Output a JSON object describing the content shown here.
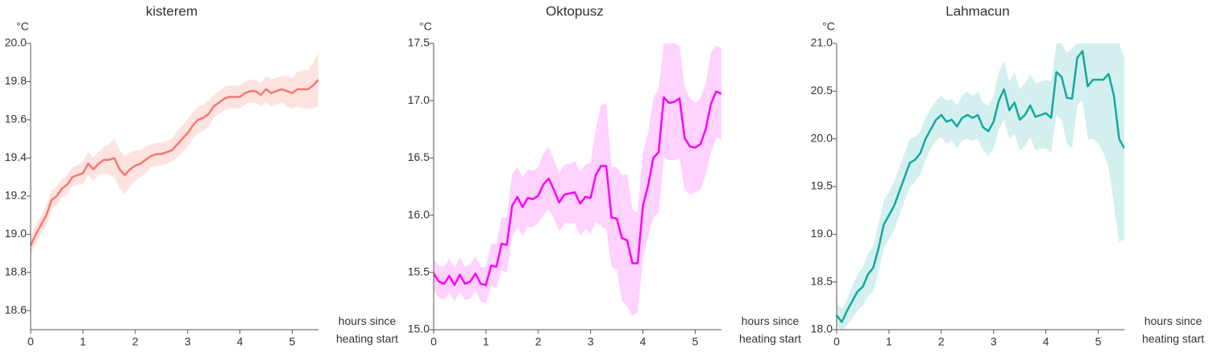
{
  "chart_data": [
    {
      "type": "line",
      "title": "kisterem",
      "ylabel": "°C",
      "xlabel": "hours since heating start",
      "color": "#f8766d",
      "band_color": "#fde3e0",
      "xlim": [
        0,
        5.5
      ],
      "xticks": [
        0,
        1,
        2,
        3,
        4,
        5
      ],
      "ylim": [
        18.5,
        20.0
      ],
      "yticks": [
        18.6,
        18.8,
        {
          "value": 19,
          "label": "19.0"
        },
        19.2,
        19.4,
        19.6,
        19.8,
        {
          "value": 20,
          "label": "20.0"
        }
      ],
      "x": [
        0,
        0.1,
        0.2,
        0.3,
        0.4,
        0.5,
        0.6,
        0.7,
        0.8,
        0.9,
        1,
        1.1,
        1.2,
        1.3,
        1.4,
        1.5,
        1.6,
        1.7,
        1.8,
        1.9,
        2,
        2.1,
        2.2,
        2.3,
        2.4,
        2.5,
        2.6,
        2.7,
        2.8,
        2.9,
        3,
        3.1,
        3.2,
        3.3,
        3.4,
        3.5,
        3.6,
        3.7,
        3.8,
        3.9,
        4,
        4.1,
        4.2,
        4.3,
        4.4,
        4.5,
        4.6,
        4.7,
        4.8,
        4.9,
        5,
        5.1,
        5.2,
        5.3,
        5.4,
        5.5
      ],
      "values": [
        18.94,
        19.0,
        19.05,
        19.1,
        19.18,
        19.2,
        19.24,
        19.26,
        19.3,
        19.31,
        19.32,
        19.37,
        19.34,
        19.37,
        19.39,
        19.39,
        19.4,
        19.34,
        19.31,
        19.34,
        19.36,
        19.37,
        19.39,
        19.41,
        19.42,
        19.42,
        19.43,
        19.44,
        19.47,
        19.5,
        19.53,
        19.57,
        19.6,
        19.61,
        19.63,
        19.67,
        19.69,
        19.71,
        19.72,
        19.72,
        19.72,
        19.74,
        19.75,
        19.75,
        19.73,
        19.76,
        19.74,
        19.75,
        19.76,
        19.75,
        19.74,
        19.76,
        19.76,
        19.76,
        19.78,
        19.81
      ],
      "lower": [
        18.89,
        18.95,
        19.0,
        19.05,
        19.13,
        19.15,
        19.19,
        19.21,
        19.25,
        19.26,
        19.26,
        19.31,
        19.28,
        19.31,
        19.32,
        19.31,
        19.3,
        19.24,
        19.21,
        19.25,
        19.28,
        19.3,
        19.32,
        19.35,
        19.36,
        19.36,
        19.37,
        19.38,
        19.4,
        19.43,
        19.46,
        19.5,
        19.53,
        19.54,
        19.56,
        19.61,
        19.63,
        19.65,
        19.66,
        19.66,
        19.66,
        19.68,
        19.69,
        19.69,
        19.67,
        19.69,
        19.67,
        19.68,
        19.69,
        19.67,
        19.66,
        19.67,
        19.66,
        19.66,
        19.66,
        19.67
      ],
      "upper": [
        18.99,
        19.05,
        19.1,
        19.15,
        19.23,
        19.25,
        19.29,
        19.31,
        19.35,
        19.36,
        19.38,
        19.43,
        19.4,
        19.43,
        19.46,
        19.47,
        19.5,
        19.44,
        19.41,
        19.43,
        19.44,
        19.44,
        19.46,
        19.47,
        19.48,
        19.48,
        19.49,
        19.5,
        19.54,
        19.57,
        19.6,
        19.64,
        19.67,
        19.68,
        19.7,
        19.73,
        19.75,
        19.77,
        19.78,
        19.78,
        19.78,
        19.8,
        19.81,
        19.81,
        19.79,
        19.83,
        19.81,
        19.82,
        19.83,
        19.83,
        19.82,
        19.85,
        19.86,
        19.86,
        19.9,
        19.95
      ]
    },
    {
      "type": "line",
      "title": "Oktopusz",
      "ylabel": "°C",
      "xlabel": "hours since heating start",
      "color": "#ff00ff",
      "band_color": "#ffd2ff",
      "xlim": [
        0,
        5.5
      ],
      "xticks": [
        0,
        1,
        2,
        3,
        4,
        5
      ],
      "ylim": [
        15.0,
        17.5
      ],
      "yticks": [
        {
          "value": 15,
          "label": "15.0"
        },
        15.5,
        {
          "value": 16,
          "label": "16.0"
        },
        16.5,
        {
          "value": 17,
          "label": "17.0"
        },
        17.5
      ],
      "x": [
        0,
        0.1,
        0.2,
        0.3,
        0.4,
        0.5,
        0.6,
        0.7,
        0.8,
        0.9,
        1,
        1.1,
        1.2,
        1.3,
        1.4,
        1.5,
        1.6,
        1.7,
        1.8,
        1.9,
        2,
        2.1,
        2.2,
        2.3,
        2.4,
        2.5,
        2.6,
        2.7,
        2.8,
        2.9,
        3,
        3.1,
        3.2,
        3.3,
        3.4,
        3.5,
        3.6,
        3.7,
        3.8,
        3.9,
        4,
        4.1,
        4.2,
        4.3,
        4.4,
        4.5,
        4.6,
        4.7,
        4.8,
        4.9,
        5,
        5.1,
        5.2,
        5.3,
        5.4,
        5.5
      ],
      "values": [
        15.49,
        15.42,
        15.4,
        15.47,
        15.39,
        15.48,
        15.4,
        15.42,
        15.49,
        15.4,
        15.39,
        15.56,
        15.55,
        15.75,
        15.74,
        16.08,
        16.16,
        16.07,
        16.15,
        16.14,
        16.17,
        16.27,
        16.32,
        16.22,
        16.11,
        16.18,
        16.19,
        16.2,
        16.1,
        16.16,
        16.15,
        16.35,
        16.43,
        16.43,
        15.98,
        15.97,
        15.8,
        15.78,
        15.58,
        15.58,
        16.08,
        16.26,
        16.5,
        16.55,
        17.03,
        16.98,
        16.99,
        17.02,
        16.67,
        16.6,
        16.59,
        16.62,
        16.75,
        16.97,
        17.08,
        17.06
      ],
      "lower": [
        15.35,
        15.28,
        15.26,
        15.32,
        15.25,
        15.33,
        15.26,
        15.27,
        15.34,
        15.25,
        15.23,
        15.38,
        15.36,
        15.52,
        15.5,
        15.8,
        15.9,
        15.82,
        15.9,
        15.9,
        15.93,
        16.0,
        16.05,
        15.97,
        15.86,
        15.93,
        15.93,
        15.93,
        15.82,
        15.88,
        15.84,
        15.95,
        15.9,
        15.88,
        15.55,
        15.52,
        15.25,
        15.2,
        15.12,
        15.15,
        15.62,
        15.82,
        15.98,
        16.02,
        16.5,
        16.48,
        16.48,
        16.5,
        16.22,
        16.18,
        16.2,
        16.22,
        16.35,
        16.55,
        16.68,
        16.66
      ],
      "upper": [
        15.62,
        15.56,
        15.55,
        15.62,
        15.54,
        15.63,
        15.55,
        15.57,
        15.64,
        15.55,
        15.55,
        15.75,
        15.75,
        15.98,
        15.98,
        16.36,
        16.42,
        16.33,
        16.4,
        16.39,
        16.42,
        16.54,
        16.6,
        16.48,
        16.37,
        16.44,
        16.45,
        16.47,
        16.38,
        16.44,
        16.46,
        16.75,
        16.96,
        16.98,
        16.42,
        16.42,
        16.35,
        16.36,
        16.05,
        16.02,
        16.55,
        16.72,
        17.02,
        17.1,
        17.5,
        17.5,
        17.5,
        17.48,
        17.12,
        17.02,
        16.98,
        17.02,
        17.15,
        17.42,
        17.48,
        17.46
      ]
    },
    {
      "type": "line",
      "title": "Lahmacun",
      "ylabel": "°C",
      "xlabel": "hours since heating start",
      "color": "#13a89e",
      "band_color": "#d3f0ee",
      "xlim": [
        0,
        5.5
      ],
      "xticks": [
        0,
        1,
        2,
        3,
        4,
        5
      ],
      "ylim": [
        18.0,
        21.0
      ],
      "yticks": [
        {
          "value": 18,
          "label": "18.0"
        },
        18.5,
        {
          "value": 19,
          "label": "19.0"
        },
        19.5,
        {
          "value": 20,
          "label": "20.0"
        },
        20.5,
        {
          "value": 21,
          "label": "21.0"
        }
      ],
      "x": [
        0,
        0.1,
        0.2,
        0.3,
        0.4,
        0.5,
        0.6,
        0.7,
        0.8,
        0.9,
        1,
        1.1,
        1.2,
        1.3,
        1.4,
        1.5,
        1.6,
        1.7,
        1.8,
        1.9,
        2,
        2.1,
        2.2,
        2.3,
        2.4,
        2.5,
        2.6,
        2.7,
        2.8,
        2.9,
        3,
        3.1,
        3.2,
        3.3,
        3.4,
        3.5,
        3.6,
        3.7,
        3.8,
        3.9,
        4,
        4.1,
        4.2,
        4.3,
        4.4,
        4.5,
        4.6,
        4.7,
        4.8,
        4.9,
        5,
        5.1,
        5.2,
        5.3,
        5.4,
        5.5
      ],
      "values": [
        18.15,
        18.08,
        18.2,
        18.3,
        18.4,
        18.45,
        18.58,
        18.65,
        18.85,
        19.1,
        19.2,
        19.3,
        19.45,
        19.6,
        19.75,
        19.78,
        19.85,
        20.0,
        20.1,
        20.2,
        20.25,
        20.18,
        20.2,
        20.13,
        20.22,
        20.25,
        20.22,
        20.25,
        20.12,
        20.08,
        20.18,
        20.4,
        20.52,
        20.3,
        20.38,
        20.2,
        20.25,
        20.35,
        20.23,
        20.25,
        20.27,
        20.22,
        20.7,
        20.65,
        20.43,
        20.42,
        20.85,
        20.92,
        20.55,
        20.62,
        20.62,
        20.62,
        20.68,
        20.45,
        20.0,
        19.9
      ],
      "lower": [
        18.05,
        17.98,
        18.05,
        18.12,
        18.2,
        18.25,
        18.35,
        18.4,
        18.6,
        18.85,
        18.95,
        19.05,
        19.2,
        19.35,
        19.5,
        19.55,
        19.62,
        19.78,
        19.9,
        19.98,
        20.02,
        19.95,
        19.98,
        19.9,
        19.98,
        20.0,
        19.98,
        20.0,
        19.88,
        19.82,
        19.9,
        20.1,
        20.2,
        20.0,
        20.05,
        19.88,
        19.92,
        20.02,
        19.88,
        19.9,
        19.9,
        19.85,
        20.25,
        20.2,
        19.95,
        19.9,
        20.35,
        20.4,
        20.0,
        20.0,
        19.95,
        19.85,
        19.7,
        19.3,
        18.92,
        18.95
      ],
      "upper": [
        18.28,
        18.22,
        18.32,
        18.45,
        18.58,
        18.65,
        18.8,
        18.88,
        19.1,
        19.35,
        19.45,
        19.55,
        19.7,
        19.85,
        20.0,
        20.02,
        20.08,
        20.22,
        20.32,
        20.4,
        20.45,
        20.4,
        20.42,
        20.35,
        20.45,
        20.5,
        20.45,
        20.5,
        20.38,
        20.35,
        20.45,
        20.7,
        20.82,
        20.6,
        20.7,
        20.52,
        20.58,
        20.68,
        20.58,
        20.6,
        20.62,
        20.6,
        21.0,
        21.0,
        20.9,
        20.95,
        21.0,
        21.0,
        21.0,
        21.0,
        21.0,
        21.0,
        21.0,
        21.0,
        21.0,
        20.85
      ]
    }
  ]
}
